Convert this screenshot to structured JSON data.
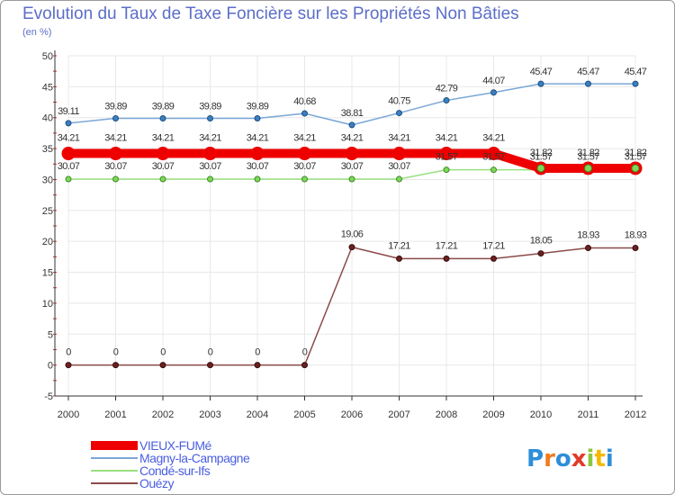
{
  "title": "Evolution du Taux de Taxe Foncière sur les Propriétés Non Bâties",
  "subtitle": "(en %)",
  "logo_text": "Proxiti",
  "chart_data": {
    "type": "line",
    "x": [
      "2000",
      "2001",
      "2002",
      "2003",
      "2004",
      "2005",
      "2006",
      "2007",
      "2008",
      "2009",
      "2010",
      "2011",
      "2012"
    ],
    "ylim": [
      -5,
      50
    ],
    "yticks": [
      -5,
      0,
      5,
      10,
      15,
      20,
      25,
      30,
      35,
      40,
      45,
      50
    ],
    "grid": true,
    "legend_position": "bottom-left",
    "series": [
      {
        "name": "VIEUX-FUMé",
        "color": "#ee0000",
        "values": [
          34.21,
          34.21,
          34.21,
          34.21,
          34.21,
          34.21,
          34.21,
          34.21,
          34.21,
          34.21,
          31.82,
          31.82,
          31.82
        ]
      },
      {
        "name": "Magny-la-Campagne",
        "color": "#7aa7d8",
        "values": [
          39.11,
          39.89,
          39.89,
          39.89,
          39.89,
          40.68,
          38.81,
          40.75,
          42.79,
          44.07,
          45.47,
          45.47,
          45.47
        ]
      },
      {
        "name": "Condé-sur-Ifs",
        "color": "#99e07f",
        "values": [
          30.07,
          30.07,
          30.07,
          30.07,
          30.07,
          30.07,
          30.07,
          30.07,
          31.57,
          31.57,
          31.57,
          31.57,
          31.57
        ]
      },
      {
        "name": "Ouézy",
        "color": "#8b4a4a",
        "values": [
          0,
          0,
          0,
          0,
          0,
          0,
          19.06,
          17.21,
          17.21,
          17.21,
          18.05,
          18.93,
          18.93
        ]
      }
    ]
  }
}
